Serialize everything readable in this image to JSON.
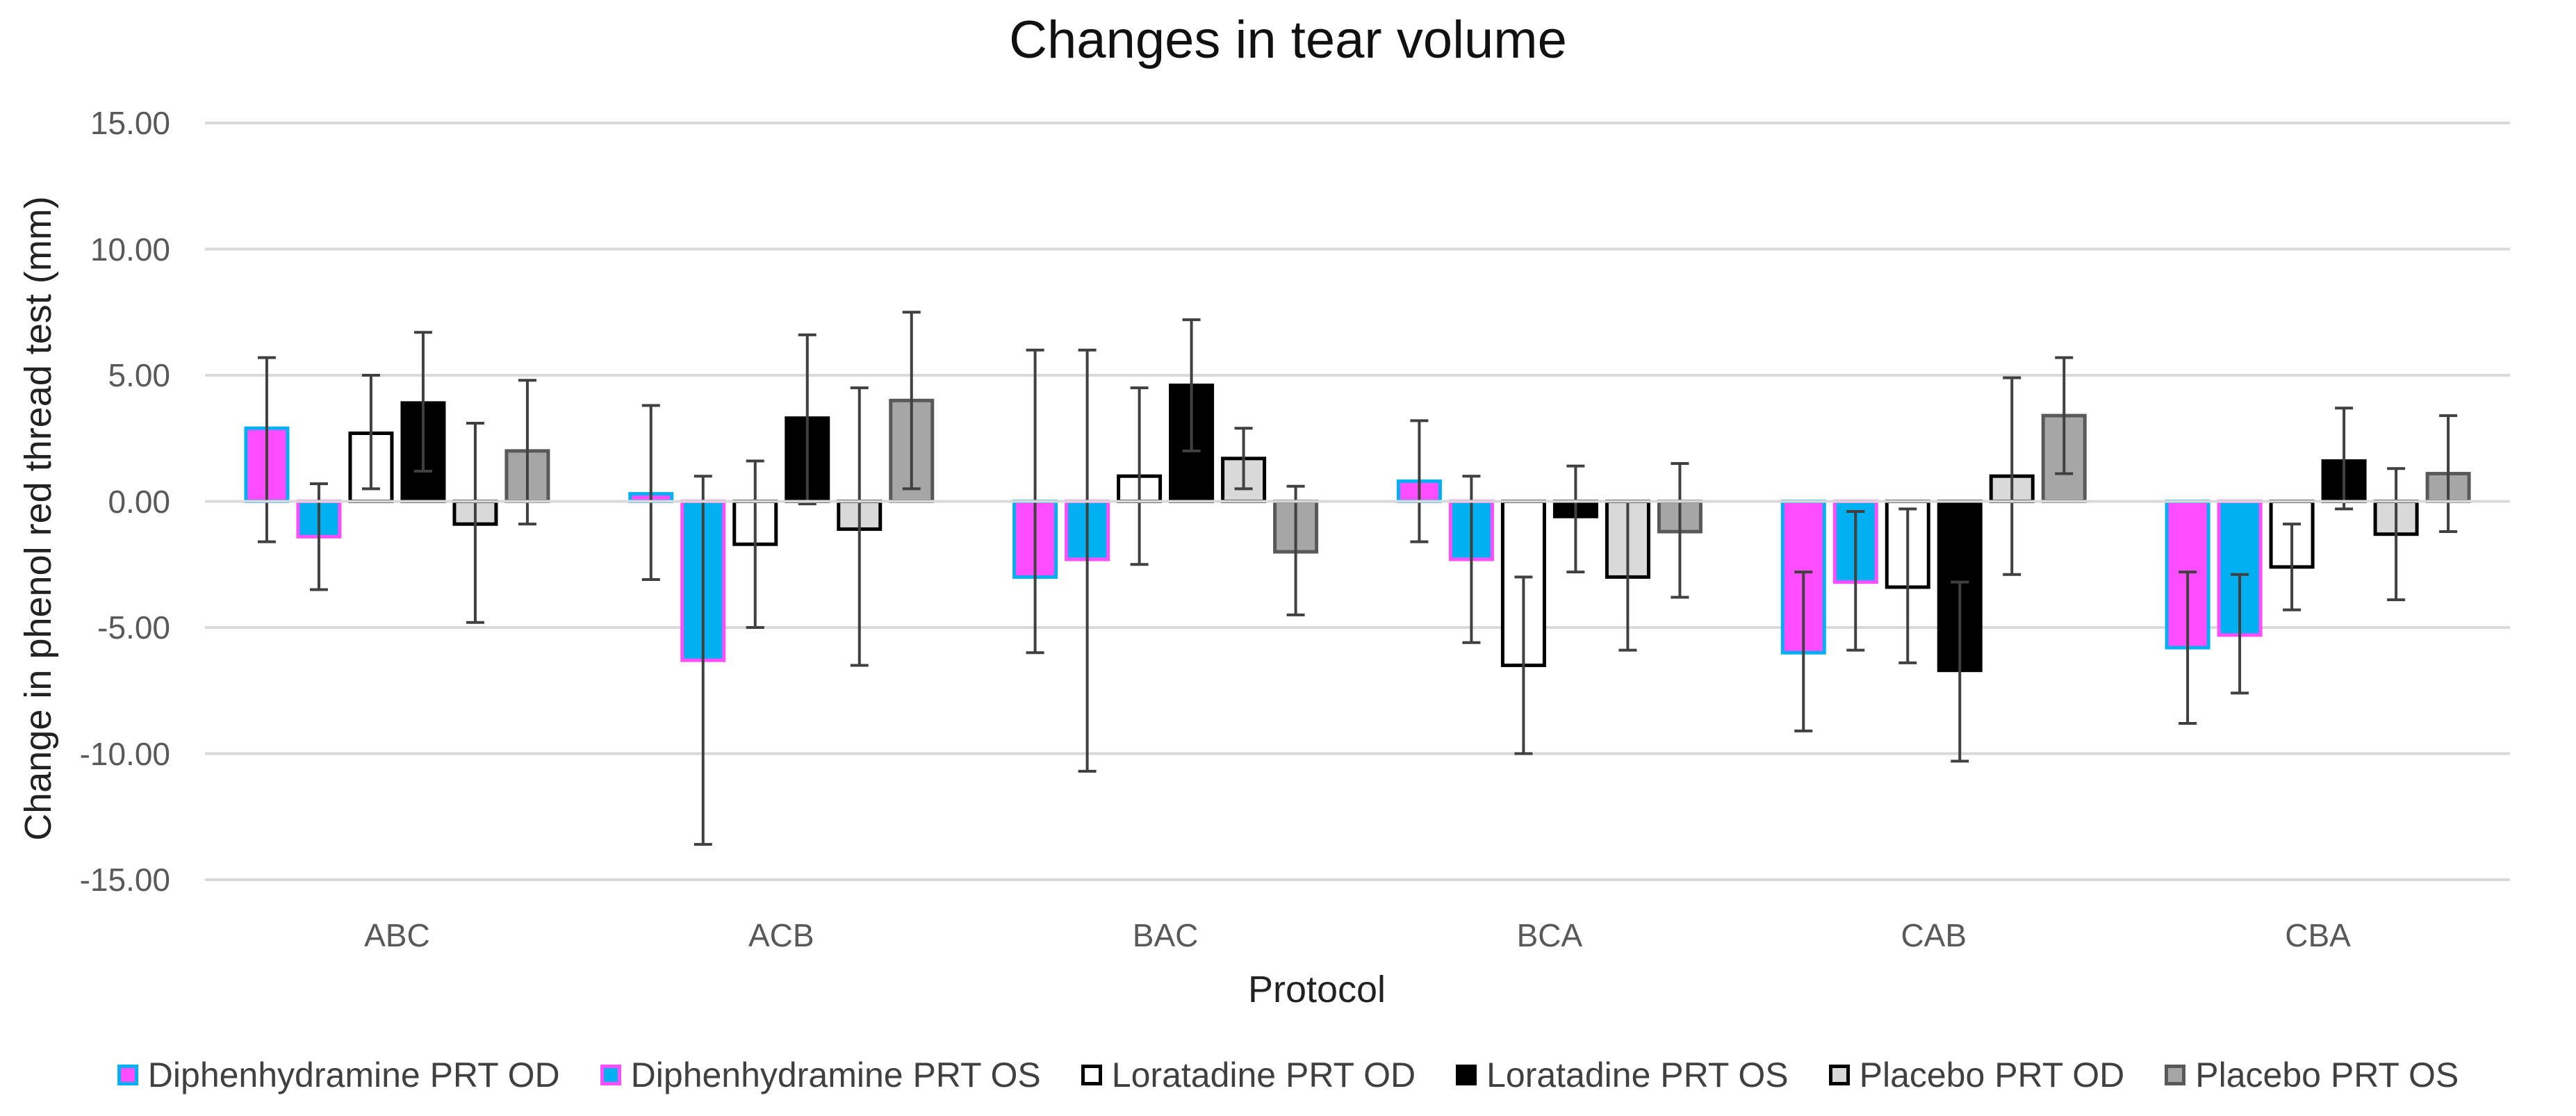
{
  "chart_data": {
    "type": "bar",
    "title": "Changes in tear volume",
    "xlabel": "Protocol",
    "ylabel": "Change in phenol red thread test (mm)",
    "ylim": [
      -15,
      15
    ],
    "y_ticks": [
      "15.00",
      "10.00",
      "5.00",
      "0.00",
      "-5.00",
      "-10.00",
      "-15.00"
    ],
    "y_tick_values": [
      15,
      10,
      5,
      0,
      -5,
      -10,
      -15
    ],
    "gridlines": true,
    "legend_position": "bottom",
    "categories": [
      "ABC",
      "ACB",
      "BAC",
      "BCA",
      "CAB",
      "CBA"
    ],
    "series": [
      {
        "name": "Diphenhydramine PRT OD",
        "fill": "#FF4DFF",
        "border": "#00B0F0",
        "values": [
          2.9,
          0.3,
          -3.0,
          0.8,
          -6.0,
          -5.8
        ],
        "error_low": [
          -1.6,
          -3.1,
          -6.0,
          -1.6,
          -9.1,
          -8.8
        ],
        "error_high": [
          5.7,
          3.8,
          6.0,
          3.2,
          -2.8,
          -2.8
        ]
      },
      {
        "name": "Diphenhydramine PRT OS",
        "fill": "#00B0F0",
        "border": "#FF4DFF",
        "values": [
          -1.4,
          -6.3,
          -2.3,
          -2.3,
          -3.2,
          -5.3
        ],
        "error_low": [
          -3.5,
          -13.6,
          -10.7,
          -5.6,
          -5.9,
          -7.6
        ],
        "error_high": [
          0.7,
          1.0,
          6.0,
          1.0,
          -0.4,
          -2.9
        ]
      },
      {
        "name": "Loratadine PRT OD",
        "fill": "#FFFFFF",
        "border": "#000000",
        "values": [
          2.7,
          -1.7,
          1.0,
          -6.5,
          -3.4,
          -2.6
        ],
        "error_low": [
          0.5,
          -5.0,
          -2.5,
          -10.0,
          -6.4,
          -4.3
        ],
        "error_high": [
          5.0,
          1.6,
          4.5,
          -3.0,
          -0.3,
          -0.9
        ]
      },
      {
        "name": "Loratadine PRT OS",
        "fill": "#000000",
        "border": "#000000",
        "values": [
          3.9,
          3.3,
          4.6,
          -0.6,
          -6.7,
          1.6
        ],
        "error_low": [
          1.2,
          -0.1,
          2.0,
          -2.8,
          -10.3,
          -0.3
        ],
        "error_high": [
          6.7,
          6.6,
          7.2,
          1.4,
          -3.2,
          3.7
        ]
      },
      {
        "name": "Placebo PRT OD",
        "fill": "#D9D9D9",
        "border": "#000000",
        "values": [
          -0.9,
          -1.1,
          1.7,
          -3.0,
          1.0,
          -1.3
        ],
        "error_low": [
          -4.8,
          -6.5,
          0.5,
          -5.9,
          -2.9,
          -3.9
        ],
        "error_high": [
          3.1,
          4.5,
          2.9,
          0.0,
          4.9,
          1.3
        ]
      },
      {
        "name": "Placebo PRT OS",
        "fill": "#A6A6A6",
        "border": "#595959",
        "values": [
          2.0,
          4.0,
          -2.0,
          -1.2,
          3.4,
          1.1
        ],
        "error_low": [
          -0.9,
          0.5,
          -4.5,
          -3.8,
          1.1,
          -1.2
        ],
        "error_high": [
          4.8,
          7.5,
          0.6,
          1.5,
          5.7,
          3.4
        ]
      }
    ]
  }
}
